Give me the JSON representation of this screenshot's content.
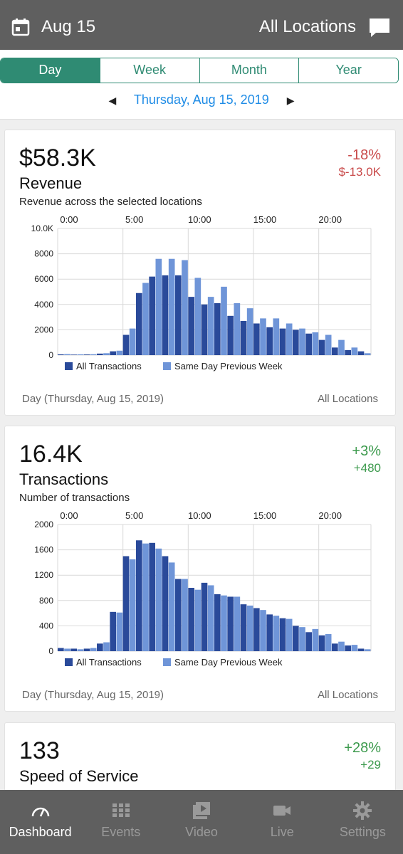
{
  "header": {
    "date": "Aug 15",
    "location": "All Locations",
    "calendar_icon": "calendar-icon",
    "chat_icon": "chat-icon"
  },
  "periods": {
    "tabs": [
      "Day",
      "Week",
      "Month",
      "Year"
    ],
    "active": "Day",
    "date_label": "Thursday, Aug 15, 2019"
  },
  "colors": {
    "accent": "#2f8b73",
    "link": "#1f8ce6",
    "series_current": "#2a4a9a",
    "series_previous": "#6f95d8",
    "negative": "#c94a4a",
    "positive": "#3c9a4d",
    "bar_bg": "#5f5f5f"
  },
  "cards": [
    {
      "value": "$58.3K",
      "title": "Revenue",
      "subtitle": "Revenue across the selected locations",
      "pct": "-18%",
      "delta": "$-13.0K",
      "trend": "down",
      "footer_left": "Day (Thursday, Aug 15, 2019)",
      "footer_right": "All Locations",
      "legend_current": "All Transactions",
      "legend_previous": "Same Day Previous Week"
    },
    {
      "value": "16.4K",
      "title": "Transactions",
      "subtitle": "Number of transactions",
      "pct": "+3%",
      "delta": "+480",
      "trend": "up",
      "footer_left": "Day (Thursday, Aug 15, 2019)",
      "footer_right": "All Locations",
      "legend_current": "All Transactions",
      "legend_previous": "Same Day Previous Week"
    },
    {
      "value": "133",
      "title": "Speed of Service",
      "pct": "+28%",
      "delta": "+29",
      "trend": "up"
    }
  ],
  "chart_data": [
    {
      "type": "bar",
      "x_ticks": [
        "0:00",
        "5:00",
        "10:00",
        "15:00",
        "20:00"
      ],
      "y_ticks": [
        "10.0K",
        "8000",
        "6000",
        "4000",
        "2000",
        "0"
      ],
      "ylim": [
        0,
        10000
      ],
      "categories": [
        "0",
        "1",
        "2",
        "3",
        "4",
        "5",
        "6",
        "7",
        "8",
        "9",
        "10",
        "11",
        "12",
        "13",
        "14",
        "15",
        "16",
        "17",
        "18",
        "19",
        "20",
        "21",
        "22",
        "23"
      ],
      "series": [
        {
          "name": "All Transactions",
          "values": [
            60,
            40,
            50,
            120,
            300,
            1600,
            4900,
            6200,
            6300,
            6300,
            4600,
            4000,
            4100,
            3100,
            2700,
            2500,
            2200,
            2100,
            2000,
            1700,
            1200,
            600,
            400,
            300
          ]
        },
        {
          "name": "Same Day Previous Week",
          "values": [
            80,
            60,
            70,
            150,
            350,
            2100,
            5700,
            7600,
            7600,
            7500,
            6100,
            4600,
            5400,
            4100,
            3700,
            2900,
            2900,
            2500,
            2100,
            1800,
            1600,
            1200,
            600,
            150
          ]
        }
      ]
    },
    {
      "type": "bar",
      "x_ticks": [
        "0:00",
        "5:00",
        "10:00",
        "15:00",
        "20:00"
      ],
      "y_ticks": [
        "2000",
        "1600",
        "1200",
        "800",
        "400",
        "0"
      ],
      "ylim": [
        0,
        2000
      ],
      "categories": [
        "0",
        "1",
        "2",
        "3",
        "4",
        "5",
        "6",
        "7",
        "8",
        "9",
        "10",
        "11",
        "12",
        "13",
        "14",
        "15",
        "16",
        "17",
        "18",
        "19",
        "20",
        "21",
        "22",
        "23"
      ],
      "series": [
        {
          "name": "All Transactions",
          "values": [
            50,
            40,
            40,
            120,
            620,
            1500,
            1750,
            1710,
            1500,
            1140,
            1000,
            1080,
            900,
            860,
            740,
            680,
            580,
            520,
            400,
            300,
            250,
            120,
            90,
            40
          ]
        },
        {
          "name": "Same Day Previous Week",
          "values": [
            40,
            30,
            50,
            140,
            610,
            1450,
            1700,
            1620,
            1400,
            1140,
            970,
            1040,
            880,
            860,
            720,
            650,
            560,
            510,
            380,
            350,
            270,
            150,
            100,
            30
          ]
        }
      ]
    }
  ],
  "tabbar": [
    {
      "label": "Dashboard",
      "icon": "speedometer-icon",
      "active": true
    },
    {
      "label": "Events",
      "icon": "grid-icon",
      "active": false
    },
    {
      "label": "Video",
      "icon": "video-library-icon",
      "active": false
    },
    {
      "label": "Live",
      "icon": "camera-icon",
      "active": false
    },
    {
      "label": "Settings",
      "icon": "gear-icon",
      "active": false
    }
  ]
}
